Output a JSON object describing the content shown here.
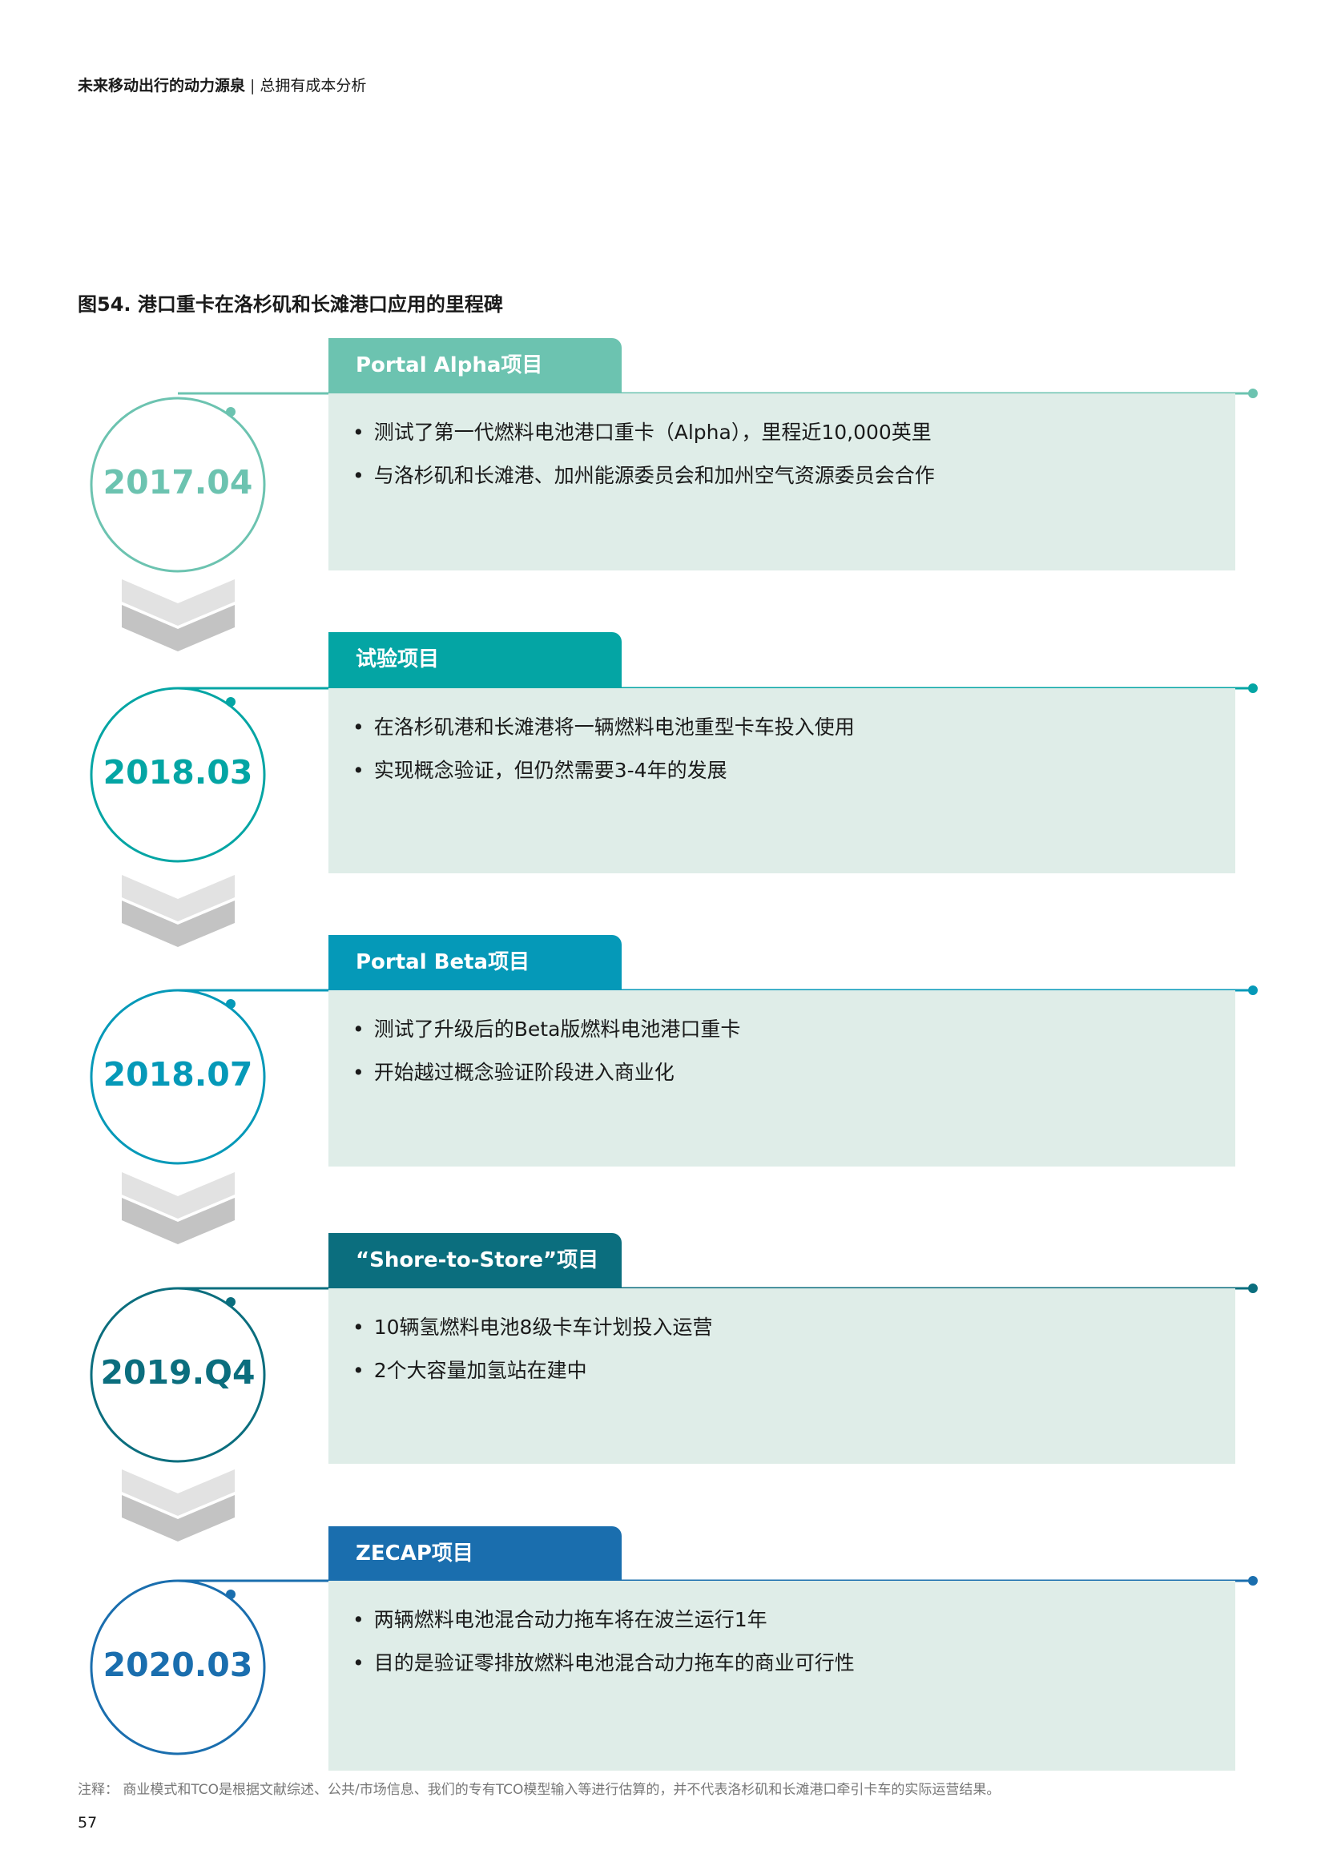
{
  "header": {
    "report": "未来移动出行的动力源泉",
    "section": "总拥有成本分析",
    "separator": "|"
  },
  "figure_title": "图54. 港口重卡在洛杉矶和长滩港口应用的里程碑",
  "milestones": [
    {
      "tab": "Portal Alpha项目",
      "date": "2017.04",
      "color": "#6cc3b0",
      "bullets": [
        "测试了第一代燃料电池港口重卡（Alpha），里程近10,000英里",
        "与洛杉矶和长滩港、加州能源委员会和加州空气资源委员会合作"
      ]
    },
    {
      "tab": "试验项目",
      "date": "2018.03",
      "color": "#04a5a4",
      "bullets": [
        "在洛杉矶港和长滩港将一辆燃料电池重型卡车投入使用",
        "实现概念验证，但仍然需要3-4年的发展"
      ]
    },
    {
      "tab": "Portal Beta项目",
      "date": "2018.07",
      "color": "#0599b8",
      "bullets": [
        "测试了升级后的Beta版燃料电池港口重卡",
        "开始越过概念验证阶段进入商业化"
      ]
    },
    {
      "tab": "“Shore-to-Store”项目",
      "date": "2019.Q4",
      "color": "#0b6e7e",
      "bullets": [
        "10辆氢燃料电池8级卡车计划投入运营",
        "2个大容量加氢站在建中"
      ]
    },
    {
      "tab": "ZECAP项目",
      "date": "2020.03",
      "color": "#1a6eae",
      "bullets": [
        "两辆燃料电池混合动力拖车将在波兰运行1年",
        "目的是验证零排放燃料电池混合动力拖车的商业可行性"
      ]
    }
  ],
  "note": "注释：  商业模式和TCO是根据文献综述、公共/市场信息、我们的专有TCO模型输入等进行估算的，并不代表洛杉矶和长滩港口牵引卡车的实际运营结果。",
  "page_number": "57",
  "box_color": "#dfede8",
  "arrow_colors": [
    "#e2e2e2",
    "#c3c3c3"
  ]
}
